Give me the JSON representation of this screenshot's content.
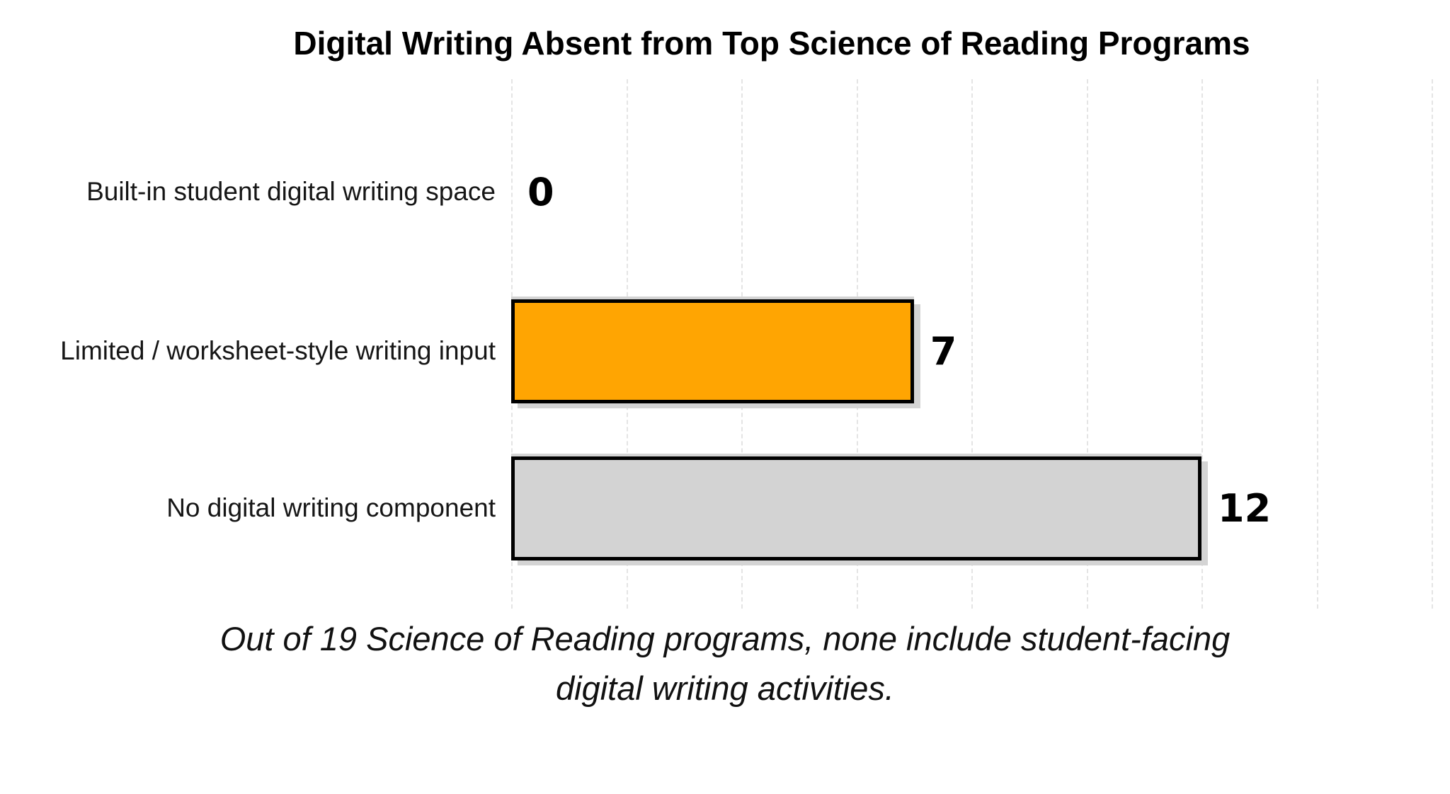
{
  "chart_data": {
    "type": "bar",
    "orientation": "horizontal",
    "title": "Digital Writing Absent from Top Science of Reading Programs",
    "categories": [
      "Built-in student digital writing space",
      "Limited / worksheet-style writing input",
      "No digital writing component"
    ],
    "values": [
      0,
      7,
      12
    ],
    "value_labels": [
      "0",
      "7",
      "12"
    ],
    "bar_colors": [
      "none",
      "#FFA502",
      "#D3D3D3"
    ],
    "xlim": [
      0,
      16
    ],
    "gridline_step": 2,
    "grid": "vertical-dashed-lines",
    "legend": "none",
    "axis_tick_labels": "none",
    "caption": {
      "line1": "Out of 19 Science of Reading programs, none include student-facing",
      "line2": "digital writing activities."
    }
  },
  "colors": {
    "background": "#FFFFFF",
    "bar_orange": "#FFA502",
    "bar_gray": "#D3D3D3",
    "bar_border": "#000000",
    "bar_shadow": "#D4D4D4",
    "gridline": "#E4E4E4",
    "title_text": "#000000",
    "label_text": "#161616"
  }
}
